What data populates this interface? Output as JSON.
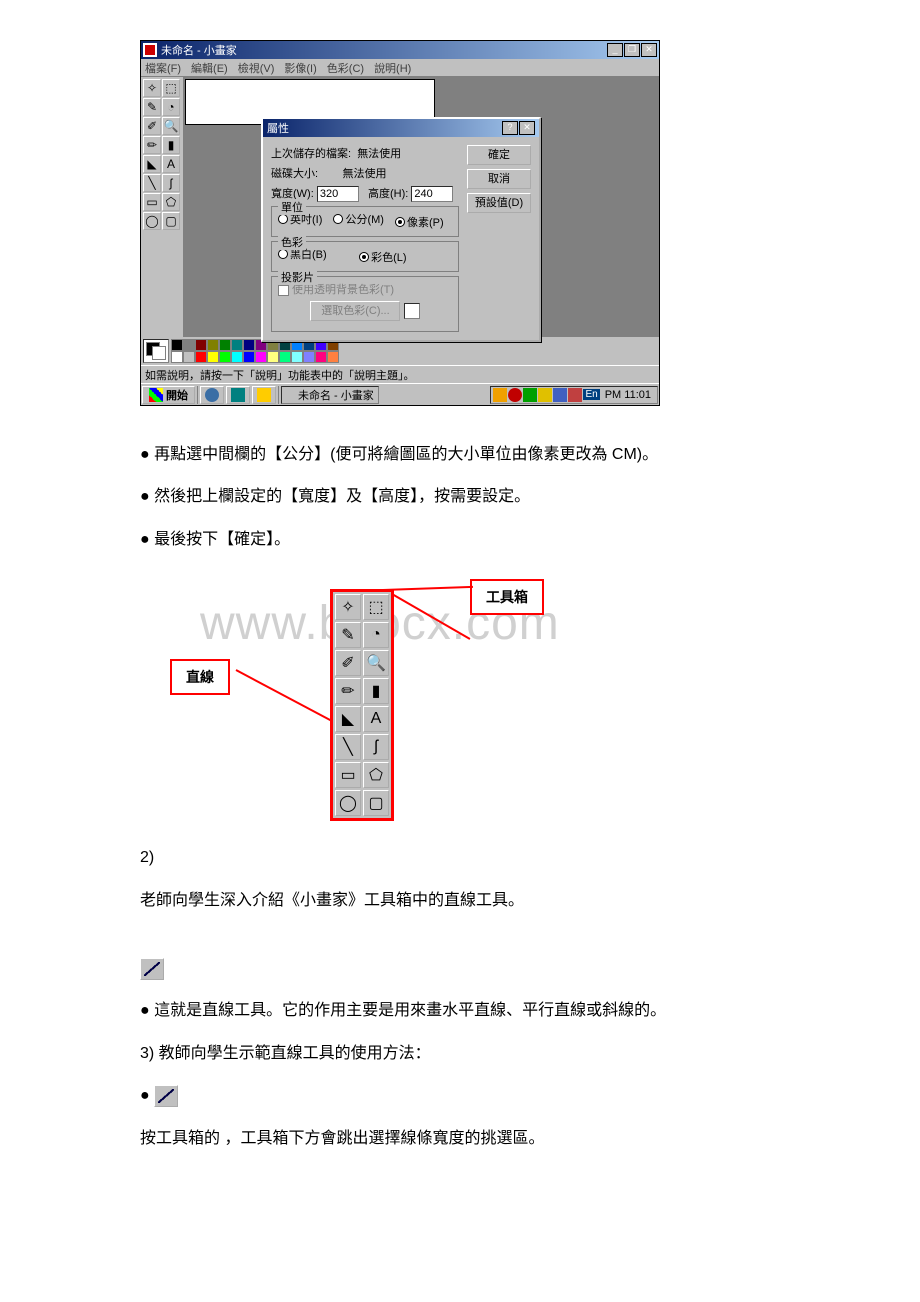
{
  "paint": {
    "title": "未命名 - 小畫家",
    "menus": [
      "檔案(F)",
      "編輯(E)",
      "檢視(V)",
      "影像(I)",
      "色彩(C)",
      "說明(H)"
    ],
    "status": "如需說明，請按一下「說明」功能表中的「說明主題」。",
    "taskbar_start": "開始",
    "taskbar_app": "未命名 - 小畫家",
    "clock": "PM 11:01",
    "tray_label": "En"
  },
  "dialog": {
    "title": "屬性",
    "last_save_label": "上次儲存的檔案:",
    "last_save_val": "無法使用",
    "disk_label": "磁碟大小:",
    "disk_val": "無法使用",
    "width_label": "寬度(W):",
    "width_val": "320",
    "height_label": "高度(H):",
    "height_val": "240",
    "unit_group": "單位",
    "unit_inch": "英吋(I)",
    "unit_cm": "公分(M)",
    "unit_px": "像素(P)",
    "color_group": "色彩",
    "color_bw": "黑白(B)",
    "color_color": "彩色(L)",
    "trans_group": "投影片",
    "trans_chk": "使用透明背景色彩(T)",
    "trans_btn": "選取色彩(C)...",
    "btn_ok": "確定",
    "btn_cancel": "取消",
    "btn_default": "預設值(D)"
  },
  "palette_colors_top": [
    "#000000",
    "#808080",
    "#800000",
    "#808000",
    "#008000",
    "#008080",
    "#000080",
    "#800080",
    "#808040",
    "#004040",
    "#0080ff",
    "#004080",
    "#4000ff",
    "#804000"
  ],
  "palette_colors_bot": [
    "#ffffff",
    "#c0c0c0",
    "#ff0000",
    "#ffff00",
    "#00ff00",
    "#00ffff",
    "#0000ff",
    "#ff00ff",
    "#ffff80",
    "#00ff80",
    "#80ffff",
    "#8080ff",
    "#ff0080",
    "#ff8040"
  ],
  "bullets": [
    "再點選中間欄的【公分】(便可將繪圖區的大小單位由像素更改為 CM)。",
    "然後把上欄設定的【寬度】及【高度】，按需要設定。",
    "最後按下【確定】。"
  ],
  "fig2": {
    "label_line": "直線",
    "label_toolbox": "工具箱"
  },
  "sec2_num": "2)",
  "sec2_text": "老師向學生深入介紹《小畫家》工具箱中的直線工具。",
  "line_desc": "這就是直線工具。它的作用主要是用來畫水平直線、平行直線或斜線的。",
  "sec3": "3)  教師向學生示範直線工具的使用方法：",
  "sec3_text": "按工具箱的 ，工具箱下方會跳出選擇線條寬度的挑選區。",
  "watermark": "www.bdocx.com",
  "tool_glyphs": [
    "✧",
    "⬚",
    "✎",
    "◔",
    "✐",
    "🔍",
    "✏",
    "▮",
    "◣",
    "A",
    "╲",
    "ʃ",
    "▭",
    "⬠",
    "◯",
    "▢"
  ]
}
